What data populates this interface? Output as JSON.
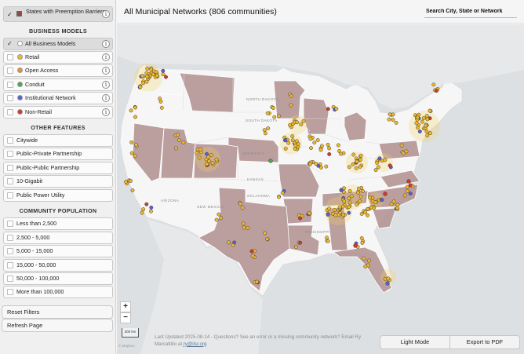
{
  "sidebar": {
    "preemption": {
      "label": "States with Preemption Barriers",
      "checked": true,
      "swatch_color": "#8f4a4a"
    },
    "business_models_heading": "BUSINESS MODELS",
    "business_models": [
      {
        "label": "All Business Models",
        "checked": true,
        "dot_color": "#ffffff",
        "selected": true
      },
      {
        "label": "Retail",
        "checked": false,
        "dot_color": "#f0b72a"
      },
      {
        "label": "Open Access",
        "checked": false,
        "dot_color": "#ef8c2e"
      },
      {
        "label": "Conduit",
        "checked": false,
        "dot_color": "#47a84a"
      },
      {
        "label": "Institutional Network",
        "checked": false,
        "dot_color": "#5a5fd6"
      },
      {
        "label": "Non-Retail",
        "checked": false,
        "dot_color": "#d2372b"
      }
    ],
    "other_features_heading": "OTHER FEATURES",
    "other_features": [
      {
        "label": "Citywide",
        "checked": false
      },
      {
        "label": "Public-Private Partnership",
        "checked": false
      },
      {
        "label": "Public-Public Partnership",
        "checked": false
      },
      {
        "label": "10-Gigabit",
        "checked": false
      },
      {
        "label": "Public Power Utility",
        "checked": false
      }
    ],
    "population_heading": "COMMUNITY POPULATION",
    "population": [
      {
        "label": "Less than 2,500",
        "checked": false
      },
      {
        "label": "2,500 - 5,000",
        "checked": false
      },
      {
        "label": "5,000 - 15,000",
        "checked": false
      },
      {
        "label": "15,000 - 50,000",
        "checked": false
      },
      {
        "label": "50,000 - 100,000",
        "checked": false
      },
      {
        "label": "More than 100,000",
        "checked": false
      }
    ],
    "reset_label": "Reset Filters",
    "refresh_label": "Refresh Page",
    "info_glyph": "i",
    "check_glyph": "✓"
  },
  "header": {
    "title": "All Municipal Networks (806 communities)",
    "search_placeholder": "Search City, State or Network"
  },
  "map": {
    "state_labels": [
      "NORTH DAKOTA",
      "SOUTH DAKOTA",
      "NEBRASKA",
      "KANSAS",
      "ARIZONA",
      "NEW MEXICO",
      "OKLAHOMA",
      "MISSISSIPPI"
    ],
    "colors": {
      "preempted": "#b89a9a",
      "land": "#f6f6f6",
      "water": "#dde0e3",
      "retail": "#f0b72a",
      "institutional": "#5a5fd6",
      "nonretail": "#d2372b",
      "conduit": "#47a84a"
    },
    "zoom_in": "+",
    "zoom_out": "−",
    "scale": "300 km",
    "attribution": "© Mapbox"
  },
  "footer": {
    "text_before": "Last Updated 2025-08-14 - Questions? See an error or a missing community network? Email Ry Marcattilio at",
    "link": "ry@ilsr.org",
    "light_mode": "Light Mode",
    "export_pdf": "Export to PDF"
  }
}
